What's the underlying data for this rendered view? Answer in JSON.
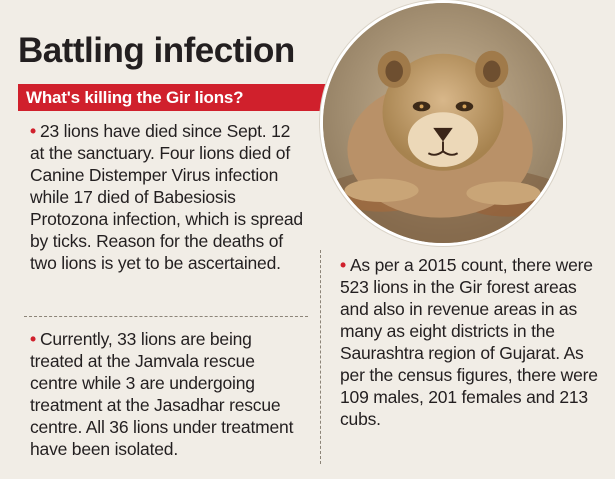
{
  "headline": "Battling infection",
  "kicker": "What's killing the Gir lions?",
  "bullet_symbol": "•",
  "items": [
    {
      "text": "23 lions have died since Sept. 12 at the sanctuary. Four lions died of Canine Distemper Virus infection while 17 died of Babesiosis Protozona infection, which is spread by ticks. Reason for the deaths of two lions is yet to be ascertained."
    },
    {
      "text": "Currently, 33 lions are being treated at the Jamvala rescue centre while 3 are undergoing treatment at the Jasadhar rescue centre. All 36 lions under treatment have been isolated."
    },
    {
      "text": "As per a 2015 count, there were 523 lions in the Gir forest areas and also in revenue areas in as many as eight districts in the Saurashtra region of Gujarat. As per the census figures, there were 109 males, 201 females and 213 cubs."
    }
  ],
  "colors": {
    "accent_red": "#d0202c",
    "background": "#f1ede6",
    "text": "#231f20"
  }
}
